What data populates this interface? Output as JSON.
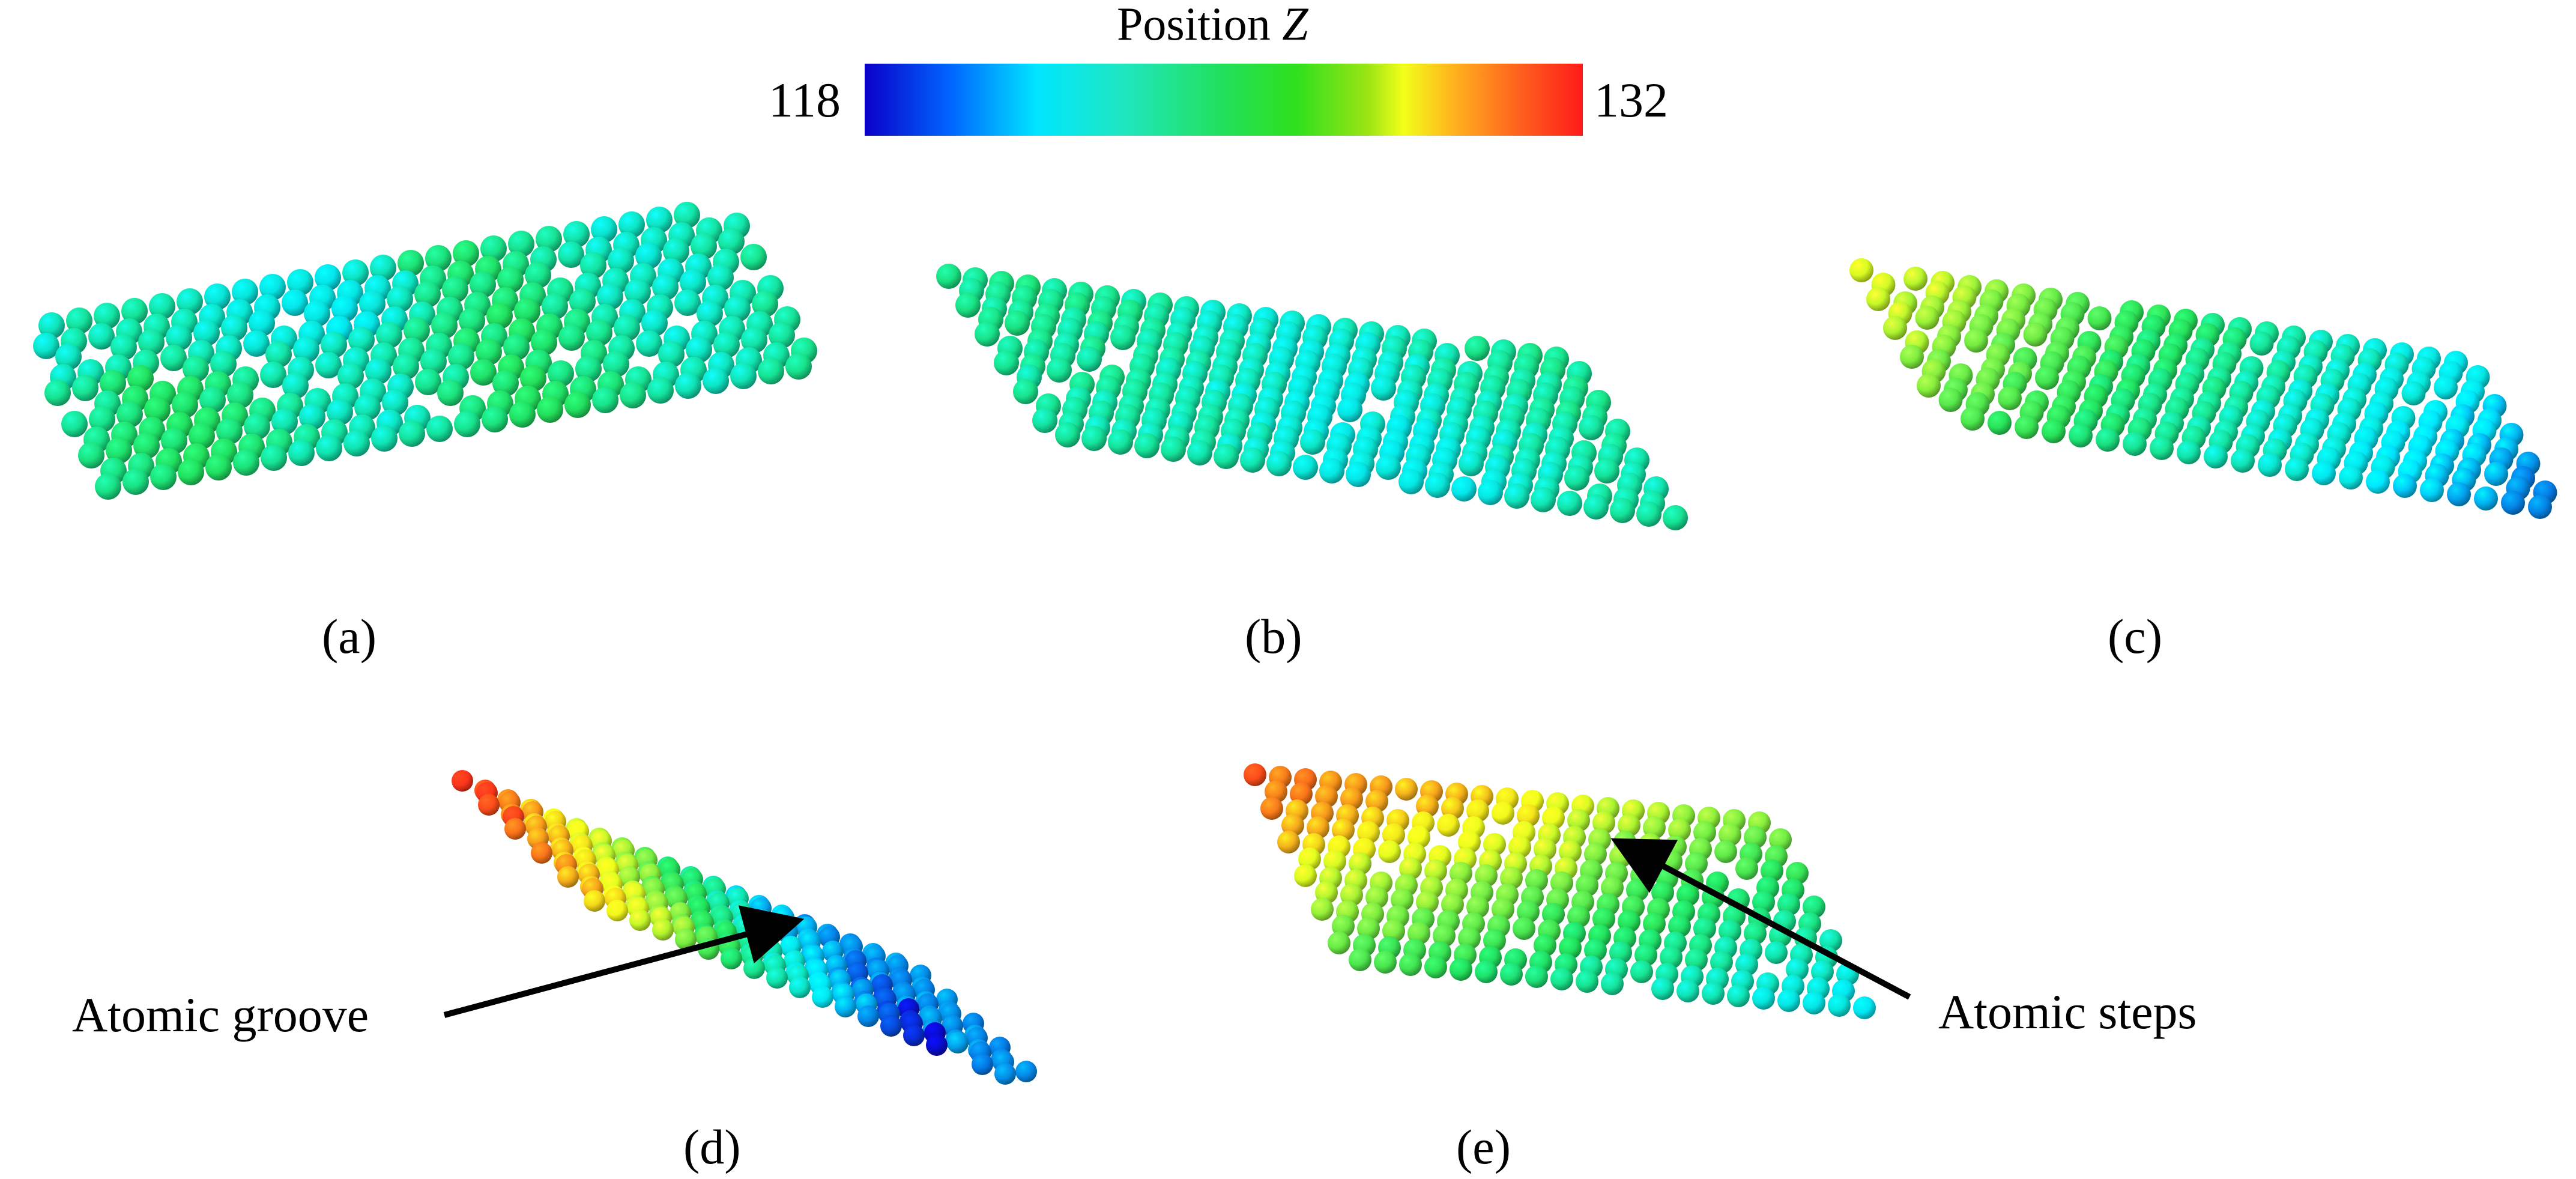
{
  "colorbar": {
    "title_prefix": "Position ",
    "title_var": "Z",
    "min_label": "118",
    "max_label": "132",
    "colors": [
      "#0a00c8",
      "#00e6ff",
      "#22e05a",
      "#f2ff1a",
      "#ff1a1a"
    ]
  },
  "panels": [
    {
      "label": "(a)"
    },
    {
      "label": "(b)"
    },
    {
      "label": "(c)"
    },
    {
      "label": "(d)"
    },
    {
      "label": "(e)"
    }
  ],
  "annotations": {
    "groove": "Atomic groove",
    "steps": "Atomic steps"
  }
}
